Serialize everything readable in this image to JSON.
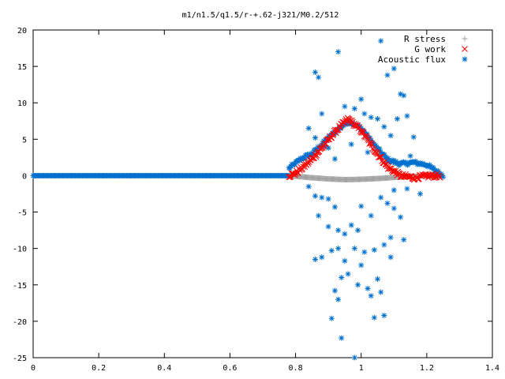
{
  "chart_data": {
    "type": "scatter",
    "title": "m1/n1.5/q1.5/r-+.62-j321/M0.2/512",
    "xlim": [
      0,
      1.4
    ],
    "ylim": [
      -25,
      20
    ],
    "xticks": [
      "0",
      "0.2",
      "0.4",
      "0.6",
      "0.8",
      "1",
      "1.2",
      "1.4"
    ],
    "yticks": [
      "20",
      "15",
      "10",
      "5",
      "0",
      "-5",
      "-10",
      "-15",
      "-20",
      "-25"
    ],
    "grid": false,
    "legend_position": "top-right",
    "series": [
      {
        "name": "R stress",
        "marker": "plus",
        "color": "#a0a0a0",
        "curve": [
          [
            0.78,
            0
          ],
          [
            0.84,
            -0.25
          ],
          [
            0.9,
            -0.45
          ],
          [
            0.95,
            -0.55
          ],
          [
            1.0,
            -0.5
          ],
          [
            1.05,
            -0.4
          ],
          [
            1.1,
            -0.25
          ],
          [
            1.15,
            -0.1
          ],
          [
            1.22,
            -0.02
          ],
          [
            1.24,
            0
          ]
        ]
      },
      {
        "name": "G work",
        "marker": "cross",
        "color": "#ff0000",
        "curve": [
          [
            0.78,
            0
          ],
          [
            0.8,
            0.3
          ],
          [
            0.84,
            1.8
          ],
          [
            0.88,
            3.8
          ],
          [
            0.92,
            6.0
          ],
          [
            0.96,
            7.8
          ],
          [
            1.0,
            6.2
          ],
          [
            1.04,
            3.6
          ],
          [
            1.08,
            1.2
          ],
          [
            1.12,
            0.0
          ],
          [
            1.16,
            -0.3
          ],
          [
            1.2,
            -0.05
          ],
          [
            1.24,
            0
          ]
        ]
      },
      {
        "name": "Acoustic flux",
        "marker": "star",
        "color": "#0070d0",
        "curve": [
          [
            0.78,
            1.0
          ],
          [
            0.82,
            2.4
          ],
          [
            0.85,
            3.0
          ],
          [
            0.88,
            4.3
          ],
          [
            0.92,
            6.0
          ],
          [
            0.96,
            7.5
          ],
          [
            1.0,
            6.5
          ],
          [
            1.04,
            4.2
          ],
          [
            1.08,
            2.2
          ],
          [
            1.12,
            1.6
          ],
          [
            1.16,
            1.8
          ],
          [
            1.2,
            1.5
          ],
          [
            1.23,
            0.6
          ],
          [
            1.25,
            0
          ]
        ],
        "scatter": [
          [
            0.93,
            17
          ],
          [
            0.86,
            14.2
          ],
          [
            0.87,
            13.5
          ],
          [
            1.06,
            18.5
          ],
          [
            1.08,
            13.8
          ],
          [
            1.1,
            14.7
          ],
          [
            0.95,
            9.5
          ],
          [
            0.98,
            9.2
          ],
          [
            1.01,
            8.5
          ],
          [
            1.03,
            8.0
          ],
          [
            1.05,
            7.8
          ],
          [
            1.07,
            6.7
          ],
          [
            0.88,
            8.5
          ],
          [
            0.84,
            6.5
          ],
          [
            0.86,
            5.2
          ],
          [
            0.89,
            4.0
          ],
          [
            1.12,
            11.2
          ],
          [
            1.13,
            11.0
          ],
          [
            1.11,
            7.8
          ],
          [
            1.14,
            8.2
          ],
          [
            1.16,
            5.3
          ],
          [
            1.09,
            5.5
          ],
          [
            1.0,
            10.5
          ],
          [
            0.9,
            3.8
          ],
          [
            0.97,
            4.3
          ],
          [
            1.02,
            3.2
          ],
          [
            1.15,
            2.7
          ],
          [
            0.92,
            2.3
          ],
          [
            0.86,
            -2.8
          ],
          [
            0.88,
            -3.0
          ],
          [
            0.9,
            -3.2
          ],
          [
            0.87,
            -5.5
          ],
          [
            0.9,
            -7.0
          ],
          [
            0.92,
            -4.3
          ],
          [
            0.93,
            -7.5
          ],
          [
            0.95,
            -8.0
          ],
          [
            0.97,
            -6.8
          ],
          [
            0.99,
            -7.5
          ],
          [
            1.0,
            -4.2
          ],
          [
            1.03,
            -5.5
          ],
          [
            1.06,
            -3.0
          ],
          [
            1.08,
            -3.8
          ],
          [
            1.1,
            -4.5
          ],
          [
            1.12,
            -5.7
          ],
          [
            1.09,
            -8.5
          ],
          [
            1.13,
            -8.8
          ],
          [
            0.86,
            -11.5
          ],
          [
            0.88,
            -11.2
          ],
          [
            0.91,
            -10.3
          ],
          [
            0.93,
            -10.0
          ],
          [
            0.95,
            -11.7
          ],
          [
            0.98,
            -10.0
          ],
          [
            1.01,
            -10.5
          ],
          [
            1.04,
            -10.2
          ],
          [
            1.07,
            -9.5
          ],
          [
            1.09,
            -11.2
          ],
          [
            0.94,
            -14.0
          ],
          [
            0.96,
            -13.5
          ],
          [
            1.0,
            -12.3
          ],
          [
            1.02,
            -15.5
          ],
          [
            1.05,
            -14.2
          ],
          [
            0.92,
            -15.8
          ],
          [
            0.93,
            -17.0
          ],
          [
            0.99,
            -15.0
          ],
          [
            1.03,
            -16.5
          ],
          [
            1.06,
            -16.0
          ],
          [
            0.91,
            -19.6
          ],
          [
            1.04,
            -19.5
          ],
          [
            1.07,
            -19.2
          ],
          [
            0.94,
            -22.3
          ],
          [
            0.98,
            -25.0
          ],
          [
            0.84,
            -1.5
          ],
          [
            1.14,
            -1.8
          ],
          [
            1.18,
            -2.5
          ],
          [
            1.1,
            -2.0
          ]
        ]
      }
    ]
  }
}
